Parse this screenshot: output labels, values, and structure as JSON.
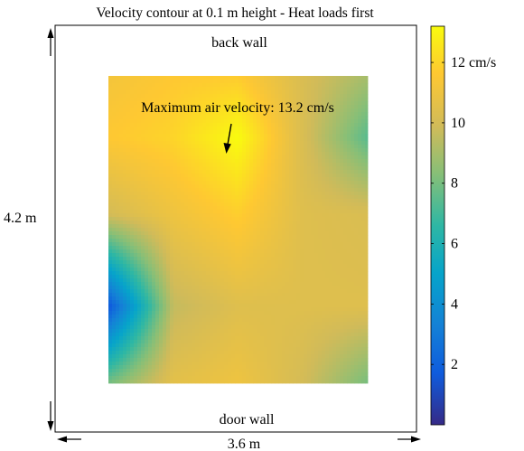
{
  "chart_data": {
    "type": "heatmap",
    "title": "Velocity contour at 0.1 m height - Heat loads first",
    "labels": {
      "top": "back wall",
      "bottom": "door wall",
      "width": "3.6 m",
      "height": "4.2 m"
    },
    "annotation": "Maximum air velocity: 13.2 cm/s",
    "colorbar": {
      "range": [
        0,
        13.2
      ],
      "ticks": [
        2,
        4,
        6,
        8,
        10,
        12
      ],
      "tick_labels": [
        "2",
        "4",
        "6",
        "8",
        "10",
        "12 cm/s"
      ],
      "colormap": "parula"
    },
    "grid": {
      "x": [
        0,
        0.25,
        0.5,
        0.75,
        1
      ],
      "y_from_top": [
        0,
        0.2,
        0.45,
        0.75,
        1
      ],
      "values": [
        [
          11.2,
          11.6,
          11.7,
          10.2,
          9.0
        ],
        [
          11.6,
          12.0,
          13.2,
          10.2,
          7.4
        ],
        [
          10.0,
          11.0,
          11.8,
          10.4,
          10.2
        ],
        [
          1.5,
          9.6,
          10.4,
          10.4,
          10.4
        ],
        [
          8.0,
          10.6,
          11.0,
          10.0,
          8.0
        ]
      ]
    }
  }
}
